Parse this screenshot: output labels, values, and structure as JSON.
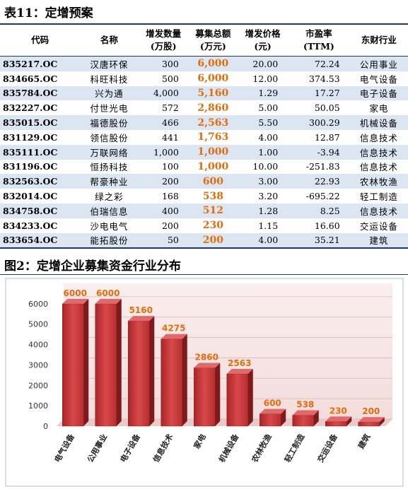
{
  "table_title": "表11：定增预案",
  "table": {
    "header": [
      [
        "代码"
      ],
      [
        "名称"
      ],
      [
        "增发数量",
        "(万股)"
      ],
      [
        "募集总额",
        "(万元)"
      ],
      [
        "增发价格",
        "(元)"
      ],
      [
        "市盈率",
        "(TTM)"
      ],
      [
        "东财行业"
      ]
    ],
    "rows": [
      [
        "835217.OC",
        "汉唐环保",
        "300",
        "6,000",
        "20.00",
        "72.24",
        "公用事业"
      ],
      [
        "834665.OC",
        "科旺科技",
        "500",
        "6,000",
        "12.00",
        "374.53",
        "电气设备"
      ],
      [
        "835784.OC",
        "兴为通",
        "4,000",
        "5,160",
        "1.29",
        "17.27",
        "电子设备"
      ],
      [
        "832227.OC",
        "付世光电",
        "572",
        "2,860",
        "5.00",
        "50.05",
        "家电"
      ],
      [
        "835015.OC",
        "福德股份",
        "466",
        "2,563",
        "5.50",
        "300.29",
        "机械设备"
      ],
      [
        "831129.OC",
        "领信股份",
        "441",
        "1,763",
        "4.00",
        "12.87",
        "信息技术"
      ],
      [
        "835111.OC",
        "万联网络",
        "1,000",
        "1,000",
        "1.00",
        "-3.94",
        "信息技术"
      ],
      [
        "831196.OC",
        "恒扬科技",
        "100",
        "1,000",
        "10.00",
        "-251.83",
        "信息技术"
      ],
      [
        "832563.OC",
        "帮豪种业",
        "200",
        "600",
        "3.00",
        "22.93",
        "农林牧渔"
      ],
      [
        "832014.OC",
        "绿之彩",
        "168",
        "538",
        "3.20",
        "-695.22",
        "轻工制造"
      ],
      [
        "834758.OC",
        "伯瑞信息",
        "400",
        "512",
        "1.28",
        "8.25",
        "信息技术"
      ],
      [
        "834233.OC",
        "沙电电气",
        "200",
        "230",
        "1.15",
        "16.60",
        "交运设备"
      ],
      [
        "833654.OC",
        "能拓股份",
        "50",
        "200",
        "4.00",
        "35.21",
        "建筑"
      ]
    ]
  },
  "chart_data": {
    "type": "bar",
    "title": "图2：定增企业募集资金行业分布",
    "categories": [
      "电气设备",
      "公用事业",
      "电子设备",
      "信息技术",
      "家电",
      "机械设备",
      "农林牧渔",
      "轻工制造",
      "交运设备",
      "建筑"
    ],
    "values": [
      6000,
      6000,
      5160,
      4275,
      2860,
      2563,
      600,
      538,
      230,
      200
    ],
    "color": "#c0393b",
    "label_color": "#e46c0a",
    "ylim": [
      0,
      7000
    ],
    "yticks": [
      0,
      1000,
      2000,
      3000,
      4000,
      5000,
      6000
    ],
    "grid": true
  }
}
